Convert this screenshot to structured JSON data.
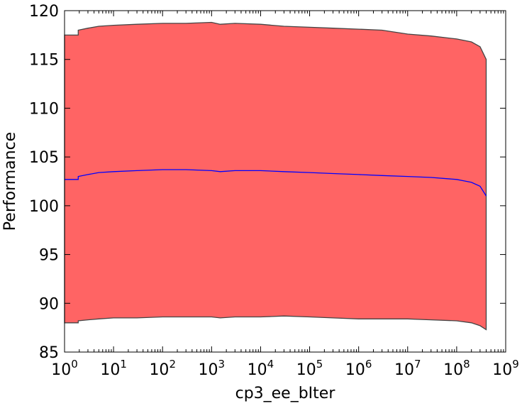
{
  "chart_data": {
    "type": "area",
    "xlabel": "cp3_ee_bIter",
    "ylabel": "Performance",
    "xscale": "log",
    "xlim": [
      1,
      1000000000
    ],
    "ylim": [
      85,
      120
    ],
    "x_ticks": [
      {
        "value": 1,
        "base": "10",
        "exp": "0"
      },
      {
        "value": 10,
        "base": "10",
        "exp": "1"
      },
      {
        "value": 100,
        "base": "10",
        "exp": "2"
      },
      {
        "value": 1000,
        "base": "10",
        "exp": "3"
      },
      {
        "value": 10000,
        "base": "10",
        "exp": "4"
      },
      {
        "value": 100000,
        "base": "10",
        "exp": "5"
      },
      {
        "value": 1000000,
        "base": "10",
        "exp": "6"
      },
      {
        "value": 10000000,
        "base": "10",
        "exp": "7"
      },
      {
        "value": 100000000,
        "base": "10",
        "exp": "8"
      },
      {
        "value": 1000000000,
        "base": "10",
        "exp": "9"
      }
    ],
    "y_ticks": [
      "85",
      "90",
      "95",
      "100",
      "105",
      "110",
      "115",
      "120"
    ],
    "grid": false,
    "fill_color": "#ff6464",
    "fill_edge_color": "#444444",
    "line_color": "#0000ff",
    "series": [
      {
        "x": [
          1,
          1.9,
          1.9,
          3,
          5,
          10,
          30,
          100,
          300,
          1000,
          1500,
          3000,
          10000,
          30000,
          100000,
          300000,
          1000000,
          3000000,
          10000000,
          30000000,
          100000000,
          200000000,
          300000000,
          400000000
        ],
        "mean": [
          102.7,
          102.7,
          103.0,
          103.2,
          103.4,
          103.5,
          103.6,
          103.7,
          103.7,
          103.6,
          103.5,
          103.6,
          103.6,
          103.5,
          103.4,
          103.3,
          103.2,
          103.1,
          103.0,
          102.9,
          102.7,
          102.4,
          102.0,
          101.0
        ],
        "upper": [
          117.5,
          117.5,
          118.0,
          118.2,
          118.4,
          118.5,
          118.6,
          118.7,
          118.7,
          118.8,
          118.6,
          118.7,
          118.6,
          118.4,
          118.3,
          118.2,
          118.1,
          118.0,
          117.6,
          117.4,
          117.1,
          116.8,
          116.3,
          115.0
        ],
        "lower": [
          88.0,
          88.0,
          88.2,
          88.3,
          88.4,
          88.5,
          88.5,
          88.6,
          88.6,
          88.6,
          88.5,
          88.6,
          88.6,
          88.7,
          88.6,
          88.5,
          88.4,
          88.4,
          88.4,
          88.3,
          88.2,
          88.0,
          87.7,
          87.3
        ]
      }
    ]
  }
}
